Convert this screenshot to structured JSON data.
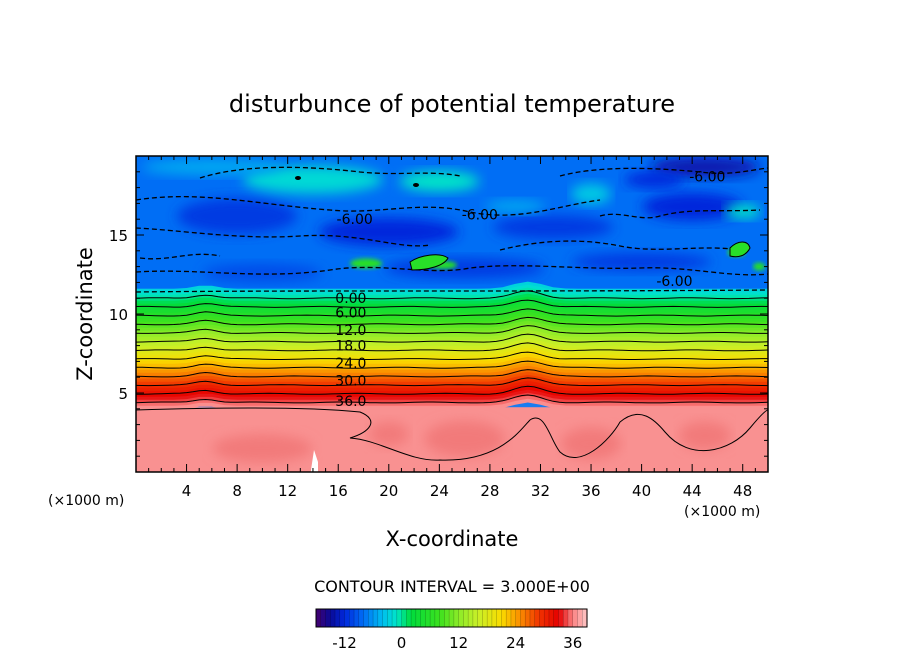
{
  "chart_data": {
    "type": "heatmap",
    "title": "disturbunce of potential temperature",
    "xlabel": "X-coordinate",
    "ylabel": "Z-coordinate",
    "x_unit": "(×1000 m)",
    "z_unit": "(×1000 m)",
    "xlim": [
      0,
      50
    ],
    "ylim": [
      0,
      20
    ],
    "x_ticks": [
      4,
      8,
      12,
      16,
      20,
      24,
      28,
      32,
      36,
      40,
      44,
      48
    ],
    "y_ticks": [
      5,
      10,
      15
    ],
    "contour_interval_text": "CONTOUR INTERVAL = 3.000E+00",
    "contour_labels": [
      {
        "text": "0.00",
        "x": 17.0,
        "z": 11.0
      },
      {
        "text": "6.00",
        "x": 17.0,
        "z": 10.1
      },
      {
        "text": "12.0",
        "x": 17.0,
        "z": 9.0
      },
      {
        "text": "18.0",
        "x": 17.0,
        "z": 8.0
      },
      {
        "text": "24.0",
        "x": 17.0,
        "z": 6.9
      },
      {
        "text": "30.0",
        "x": 17.0,
        "z": 5.8
      },
      {
        "text": "36.0",
        "x": 17.0,
        "z": 4.5
      },
      {
        "text": "-6.00",
        "x": 17.3,
        "z": 16.0
      },
      {
        "text": "-6.00",
        "x": 27.2,
        "z": 16.3
      },
      {
        "text": "-6.00",
        "x": 45.2,
        "z": 18.7
      },
      {
        "text": "-6.00",
        "x": 42.6,
        "z": 12.1
      }
    ],
    "colorbar": {
      "min": -18,
      "max": 39,
      "ticks": [
        -12,
        0,
        12,
        24,
        36
      ]
    },
    "grid": false,
    "legend": "colorbar bottom"
  }
}
